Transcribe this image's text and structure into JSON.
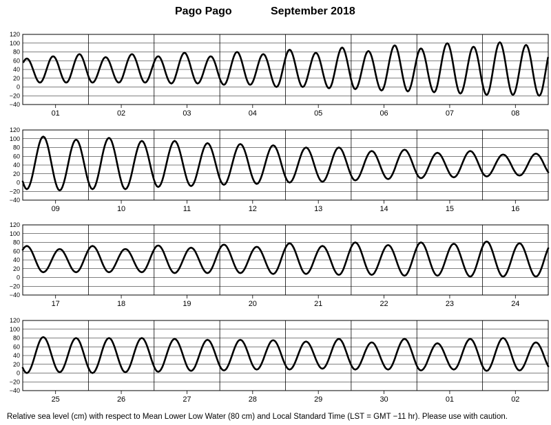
{
  "title": {
    "place": "Pago Pago",
    "period": "September   2018"
  },
  "footnote": "Relative sea level (cm) with respect to Mean Lower Low Water (80 cm) and Local Standard Time (LST = GMT −11 hr). Please use with caution.",
  "chart_data": [
    {
      "type": "line",
      "ylim": [
        -40,
        120
      ],
      "yticks": [
        -40,
        -20,
        0,
        20,
        40,
        60,
        80,
        100,
        120
      ],
      "grid": true,
      "days": [
        "01",
        "02",
        "03",
        "04",
        "05",
        "06",
        "07",
        "08"
      ],
      "series": [
        {
          "values": [
            [
              65,
              10,
              70,
              10,
              75,
              10,
              68,
              10
            ],
            [
              75,
              10,
              70,
              8,
              78,
              8,
              70,
              5
            ],
            [
              80,
              5,
              75,
              0,
              85,
              0,
              78,
              -3
            ],
            [
              90,
              -5,
              82,
              -8,
              95,
              -10,
              88,
              -12
            ],
            [
              100,
              -15,
              92,
              -18,
              102,
              -18,
              96,
              -20
            ]
          ]
        }
      ]
    },
    {
      "type": "line",
      "ylim": [
        -40,
        120
      ],
      "yticks": [
        -40,
        -20,
        0,
        20,
        40,
        60,
        80,
        100,
        120
      ],
      "grid": true,
      "days": [
        "09",
        "10",
        "11",
        "12",
        "13",
        "14",
        "15",
        "16"
      ],
      "series": [
        {
          "values": [
            [
              -15,
              105,
              -18,
              98,
              -15,
              102,
              -15,
              95
            ],
            [
              -10,
              95,
              -8,
              90,
              -5,
              88,
              -3,
              85
            ],
            [
              0,
              80,
              2,
              80,
              5,
              72,
              8,
              75
            ],
            [
              10,
              68,
              12,
              72,
              14,
              64,
              16,
              66
            ]
          ]
        }
      ]
    },
    {
      "type": "line",
      "ylim": [
        -40,
        120
      ],
      "yticks": [
        -40,
        -20,
        0,
        20,
        40,
        60,
        80,
        100,
        120
      ],
      "grid": true,
      "days": [
        "17",
        "18",
        "19",
        "20",
        "21",
        "22",
        "23",
        "24"
      ],
      "series": [
        {
          "values": [
            [
              72,
              12,
              65,
              12,
              72,
              12,
              65,
              12
            ],
            [
              73,
              10,
              68,
              10,
              75,
              10,
              70,
              8
            ],
            [
              78,
              8,
              72,
              6,
              80,
              6,
              74,
              4
            ],
            [
              80,
              4,
              77,
              2,
              82,
              2,
              78,
              2
            ]
          ]
        }
      ]
    },
    {
      "type": "line",
      "ylim": [
        -40,
        120
      ],
      "yticks": [
        -40,
        -20,
        0,
        20,
        40,
        60,
        80,
        100,
        120
      ],
      "grid": true,
      "days": [
        "25",
        "26",
        "27",
        "28",
        "29",
        "30",
        "01",
        "02"
      ],
      "series": [
        {
          "values": [
            [
              0,
              82,
              2,
              80,
              0,
              80,
              2,
              80
            ],
            [
              3,
              78,
              5,
              76,
              6,
              76,
              8,
              75
            ],
            [
              8,
              72,
              10,
              78,
              8,
              70,
              8,
              78
            ],
            [
              6,
              68,
              8,
              78,
              5,
              80,
              6,
              70
            ]
          ]
        }
      ]
    }
  ]
}
